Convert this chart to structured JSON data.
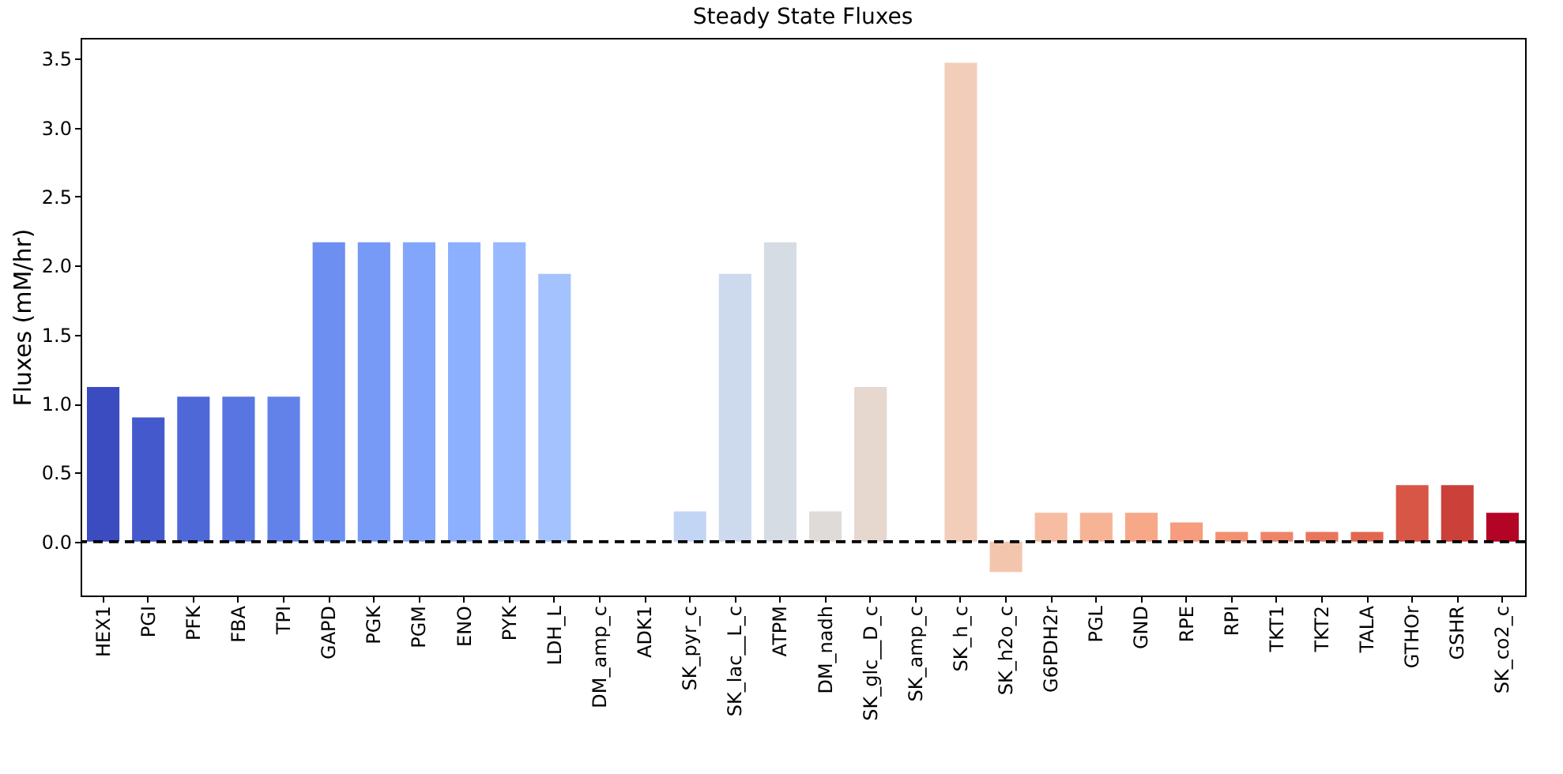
{
  "chart_data": {
    "type": "bar",
    "title": "Steady State Fluxes",
    "ylabel": "Fluxes (mM/hr)",
    "categories": [
      "HEX1",
      "PGI",
      "PFK",
      "FBA",
      "TPI",
      "GAPD",
      "PGK",
      "PGM",
      "ENO",
      "PYK",
      "LDH_L",
      "DM_amp_c",
      "ADK1",
      "SK_pyr_c",
      "SK_lac__L_c",
      "ATPM",
      "DM_nadh",
      "SK_glc__D_c",
      "SK_amp_c",
      "SK_h_c",
      "SK_h2o_c",
      "G6PDH2r",
      "PGL",
      "GND",
      "RPE",
      "RPI",
      "TKT1",
      "TKT2",
      "TALA",
      "GTHOr",
      "GSHR",
      "SK_co2_c"
    ],
    "values": [
      1.12,
      0.9,
      1.05,
      1.05,
      1.05,
      2.17,
      2.17,
      2.17,
      2.17,
      2.17,
      1.94,
      0,
      0,
      0.22,
      1.94,
      2.17,
      0.22,
      1.12,
      0,
      3.47,
      -0.22,
      0.21,
      0.21,
      0.21,
      0.14,
      0.07,
      0.07,
      0.07,
      0.07,
      0.41,
      0.41,
      0.21
    ],
    "colors": [
      "#3b4cc0",
      "#445acc",
      "#4e68d8",
      "#5875e1",
      "#6282ea",
      "#6c8ff1",
      "#779af7",
      "#82a6fb",
      "#8db0fe",
      "#98b9ff",
      "#a3c2fe",
      "#aec9fc",
      "#b9d0f9",
      "#c3d5f4",
      "#cdd9ec",
      "#d6dce4",
      "#dfdbd9",
      "#e6d7cf",
      "#ecd3c5",
      "#f1cdba",
      "#f4c5ad",
      "#f6bda2",
      "#f7b396",
      "#f7a889",
      "#f59d7e",
      "#f29072",
      "#ee8468",
      "#e8765c",
      "#e16751",
      "#d85646",
      "#cc403a",
      "#b40426"
    ],
    "ylim": [
      -0.39,
      3.65
    ],
    "yticks": [
      {
        "value": 0,
        "label": "0.0"
      },
      0.5,
      {
        "value": 1,
        "label": "1.0"
      },
      1.5,
      {
        "value": 2,
        "label": "2.0"
      },
      2.5,
      {
        "value": 3,
        "label": "3.0"
      },
      3.5
    ],
    "grid": false,
    "ref_lines": [
      {
        "axis": "y",
        "value": 0,
        "color": "#000000",
        "line_style": "dashed"
      }
    ]
  }
}
